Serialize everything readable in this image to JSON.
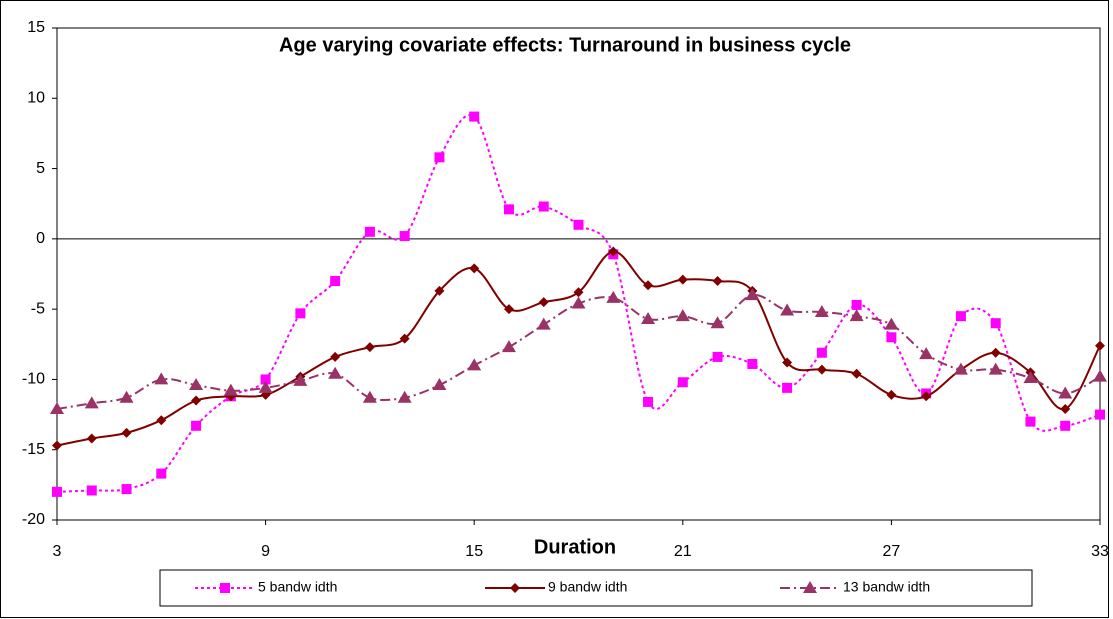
{
  "chart_data": {
    "type": "line",
    "title": "Age varying covariate effects: Turnaround in business cycle",
    "x_label": "Duration",
    "x": [
      3,
      4,
      5,
      6,
      7,
      8,
      9,
      10,
      11,
      12,
      13,
      14,
      15,
      16,
      17,
      18,
      19,
      20,
      21,
      22,
      23,
      24,
      25,
      26,
      27,
      28,
      29,
      30,
      31,
      32,
      33
    ],
    "xlim": [
      3,
      33
    ],
    "xticks": [
      3,
      9,
      15,
      21,
      27,
      33
    ],
    "ylim": [
      -20,
      15
    ],
    "yticks": [
      -20,
      -15,
      -10,
      -5,
      0,
      5,
      10,
      15
    ],
    "series": [
      {
        "name": "5 bandw idth",
        "color": "#ff00ff",
        "dash": "dotted",
        "marker": "square",
        "values": [
          -18,
          -17.9,
          -17.8,
          -16.7,
          -13.3,
          -11.2,
          -10,
          -5.3,
          -3,
          0.5,
          0.2,
          5.8,
          8.7,
          2.1,
          2.3,
          1,
          -1.1,
          -11.6,
          -10.2,
          -8.4,
          -8.9,
          -10.6,
          -8.1,
          -4.7,
          -7,
          -11,
          -5.5,
          -6,
          -13,
          -13.3,
          -12.5
        ]
      },
      {
        "name": "9 bandw idth",
        "color": "#800000",
        "dash": "solid",
        "marker": "diamond",
        "values": [
          -14.7,
          -14.2,
          -13.8,
          -12.9,
          -11.5,
          -11.2,
          -11.1,
          -9.8,
          -8.4,
          -7.7,
          -7.1,
          -3.7,
          -2.1,
          -5,
          -4.5,
          -3.8,
          -0.9,
          -3.3,
          -2.9,
          -3,
          -3.7,
          -8.8,
          -9.3,
          -9.6,
          -11.1,
          -11.2,
          -9.3,
          -8.1,
          -9.5,
          -12.1,
          -7.6
        ]
      },
      {
        "name": "13 bandw idth",
        "color": "#993366",
        "dash": "dashdot",
        "marker": "triangle",
        "values": [
          -12.1,
          -11.7,
          -11.3,
          -10,
          -10.4,
          -10.8,
          -10.6,
          -10.1,
          -9.6,
          -11.3,
          -11.3,
          -10.4,
          -9,
          -7.7,
          -6.1,
          -4.6,
          -4.2,
          -5.7,
          -5.5,
          -6,
          -4,
          -5.1,
          -5.2,
          -5.5,
          -6.1,
          -8.2,
          -9.3,
          -9.3,
          -9.9,
          -11,
          -9.8
        ]
      }
    ]
  }
}
